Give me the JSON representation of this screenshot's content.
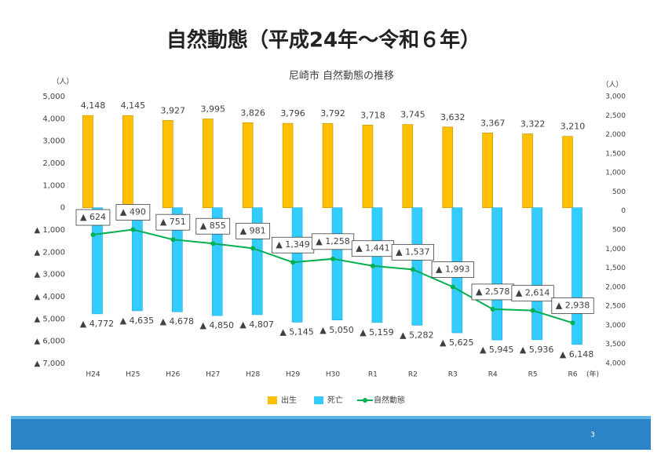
{
  "page_title": "自然動態（平成24年～令和６年）",
  "page_number": "3",
  "chart_data": {
    "type": "bar",
    "title": "尼崎市 自然動態の推移",
    "y_unit": "（人）",
    "y2_unit": "（人）",
    "x_unit": "(年)",
    "categories": [
      "H24",
      "H25",
      "H26",
      "H27",
      "H28",
      "H29",
      "H30",
      "R1",
      "R2",
      "R3",
      "R4",
      "R5",
      "R6"
    ],
    "ylim": [
      -7000,
      5000
    ],
    "yticks": [
      {
        "value": 5000,
        "label": "5,000"
      },
      {
        "value": 4000,
        "label": "4,000"
      },
      {
        "value": 3000,
        "label": "3,000"
      },
      {
        "value": 2000,
        "label": "2,000"
      },
      {
        "value": 1000,
        "label": "1,000"
      },
      0,
      {
        "value": -1000,
        "label": "▲ 1,000"
      },
      {
        "value": -2000,
        "label": "▲ 2,000"
      },
      {
        "value": -3000,
        "label": "▲ 3,000"
      },
      {
        "value": -4000,
        "label": "▲ 4,000"
      },
      {
        "value": -5000,
        "label": "▲ 5,000"
      },
      {
        "value": -6000,
        "label": "▲ 6,000"
      },
      {
        "value": -7000,
        "label": "▲ 7,000"
      }
    ],
    "y2lim": [
      -4000,
      3000
    ],
    "y2ticks": [
      {
        "value": 3000,
        "label": "3,000"
      },
      {
        "value": 2500,
        "label": "2,500"
      },
      {
        "value": 2000,
        "label": "2,000"
      },
      {
        "value": 1500,
        "label": "1,500"
      },
      {
        "value": 1000,
        "label": "1,000"
      },
      500,
      0,
      {
        "value": -500,
        "label": "500"
      },
      {
        "value": -1000,
        "label": "1,000"
      },
      {
        "value": -1500,
        "label": "1,500"
      },
      {
        "value": -2000,
        "label": "2,000"
      },
      {
        "value": -2500,
        "label": "2,500"
      },
      {
        "value": -3000,
        "label": "3,000"
      },
      {
        "value": -3500,
        "label": "3,500"
      },
      {
        "value": -4000,
        "label": "4,000"
      }
    ],
    "grid": false,
    "legend": "bottom",
    "series": [
      {
        "name": "出生",
        "type": "bar",
        "color": "#FFC000",
        "values": [
          4148,
          4145,
          3927,
          3995,
          3826,
          3796,
          3792,
          3718,
          3745,
          3632,
          3367,
          3322,
          3210
        ],
        "value_labels": [
          "4,148",
          "4,145",
          "3,927",
          "3,995",
          "3,826",
          "3,796",
          "3,792",
          "3,718",
          "3,745",
          "3,632",
          "3,367",
          "3,322",
          "3,210"
        ]
      },
      {
        "name": "死亡",
        "type": "bar",
        "color": "#33CCFF",
        "values": [
          -4772,
          -4635,
          -4678,
          -4850,
          -4807,
          -5145,
          -5050,
          -5159,
          -5282,
          -5625,
          -5945,
          -5936,
          -6148
        ],
        "value_labels": [
          "▲ 4,772",
          "▲ 4,635",
          "▲ 4,678",
          "▲ 4,850",
          "▲ 4,807",
          "▲ 5,145",
          "▲ 5,050",
          "▲ 5,159",
          "▲ 5,282",
          "▲ 5,625",
          "▲ 5,945",
          "▲ 5,936",
          "▲ 6,148"
        ]
      },
      {
        "name": "自然動態",
        "type": "line",
        "axis": "y2",
        "color": "#00B050",
        "values": [
          -624,
          -490,
          -751,
          -855,
          -981,
          -1349,
          -1258,
          -1441,
          -1537,
          -1993,
          -2578,
          -2614,
          -2938
        ],
        "value_labels": [
          "▲ 624",
          "▲ 490",
          "▲ 751",
          "▲ 855",
          "▲ 981",
          "▲ 1,349",
          "▲ 1,258",
          "▲ 1,441",
          "▲ 1,537",
          "▲ 1,993",
          "▲ 2,578",
          "▲ 2,614",
          "▲ 2,938"
        ]
      }
    ]
  }
}
